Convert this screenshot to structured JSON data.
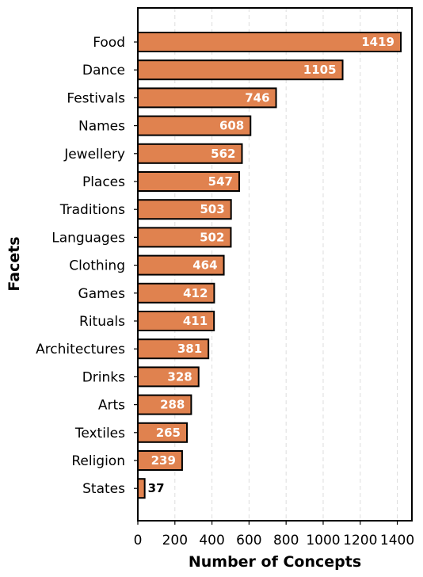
{
  "chart_data": {
    "type": "bar",
    "orientation": "horizontal",
    "categories": [
      "Food",
      "Dance",
      "Festivals",
      "Names",
      "Jewellery",
      "Places",
      "Traditions",
      "Languages",
      "Clothing",
      "Games",
      "Rituals",
      "Architectures",
      "Drinks",
      "Arts",
      "Textiles",
      "Religion",
      "States"
    ],
    "values": [
      1419,
      1105,
      746,
      608,
      562,
      547,
      503,
      502,
      464,
      412,
      411,
      381,
      328,
      288,
      265,
      239,
      37
    ],
    "xlabel": "Number of Concepts",
    "ylabel": "Facets",
    "xlim": [
      0,
      1420
    ],
    "xticks": [
      "0",
      "200",
      "400",
      "600",
      "800",
      "1000",
      "1200",
      "1400"
    ],
    "grid": "vertical dashed",
    "colors": {
      "bar_fill": "#E0824F",
      "bar_edge": "#000000",
      "label_inside": "#ffffff",
      "label_outside": "#000000",
      "grid": "#dddddd"
    }
  }
}
